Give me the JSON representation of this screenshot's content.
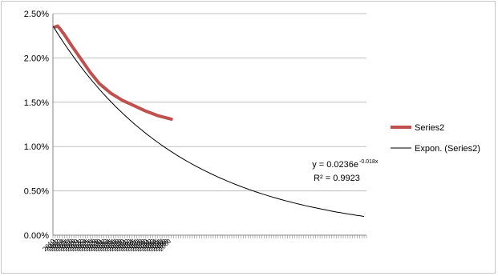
{
  "chart_data": {
    "type": "line",
    "title": "",
    "xlabel": "",
    "ylabel": "",
    "ylim": [
      0,
      0.025
    ],
    "y_ticks": [
      "0.00%",
      "0.50%",
      "1.00%",
      "1.50%",
      "2.00%",
      "2.50%"
    ],
    "x_ticks": [
      "2010",
      "2011",
      "2012",
      "2013",
      "2014",
      "2015",
      "2016",
      "2017",
      "2018",
      "2019",
      "2020",
      "2021",
      "2022",
      "2023",
      "2024",
      "2025",
      "2026",
      "2027",
      "2028",
      "2029",
      "2030",
      "2031",
      "2032",
      "2033",
      "2034",
      "2035",
      "2036",
      "2037",
      "2038",
      "2039",
      "2040",
      "2041",
      "2042",
      "2043",
      "2044",
      "2045",
      "2046",
      "2047",
      "2048",
      "2049",
      "2050",
      "2051",
      "2052",
      "2053",
      "2054",
      "2055",
      "2056",
      "2057",
      "2058",
      "2059",
      "2060"
    ],
    "xlim": [
      0,
      135
    ],
    "grid": "horizontal",
    "legend_position": "right",
    "colors": {
      "series2": "#c0504d",
      "trend": "#000000",
      "grid": "#bfbfbf",
      "axis": "#868686"
    },
    "series": [
      {
        "name": "Series2",
        "x": [
          1,
          2,
          3,
          5,
          8,
          12,
          16,
          20,
          25,
          30,
          35,
          40,
          45,
          51
        ],
        "values": [
          0.0235,
          0.0236,
          0.0233,
          0.0226,
          0.0214,
          0.0199,
          0.0184,
          0.0171,
          0.016,
          0.0152,
          0.0146,
          0.014,
          0.0135,
          0.0131
        ]
      },
      {
        "name": "Expon. (Series2)",
        "trendline": {
          "kind": "exponential",
          "a": 0.0236,
          "b": -0.018,
          "x_from": 0,
          "x_to": 134
        }
      }
    ],
    "equation": {
      "base": "y = 0.0236e",
      "exponent": "-0.018x",
      "r2": "R² = 0.9923"
    }
  }
}
